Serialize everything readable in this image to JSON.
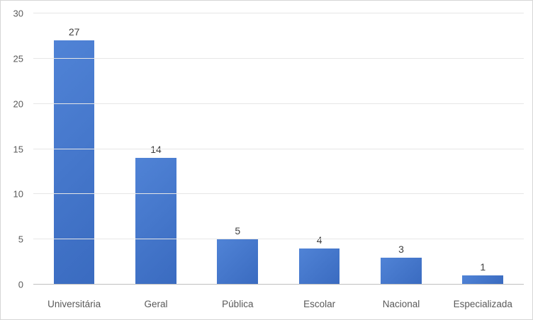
{
  "chart_data": {
    "type": "bar",
    "title": "",
    "xlabel": "",
    "ylabel": "",
    "categories": [
      "Universitária",
      "Geral",
      "Pública",
      "Escolar",
      "Nacional",
      "Especializada"
    ],
    "values": [
      27,
      14,
      5,
      4,
      3,
      1
    ],
    "ylim": [
      0,
      30
    ],
    "yticks": [
      0,
      5,
      10,
      15,
      20,
      25,
      30
    ],
    "grid": true,
    "legend": false,
    "data_labels": true,
    "colors": {
      "bar_gradient_top": "#5083d6",
      "bar_gradient_bottom": "#3a6bc0",
      "gridline": "#e6e6e6",
      "axis_baseline": "#bfbfbf",
      "tick_text": "#595959",
      "value_label_text": "#404040",
      "background": "#ffffff",
      "frame_border": "#d6d6d6"
    }
  }
}
